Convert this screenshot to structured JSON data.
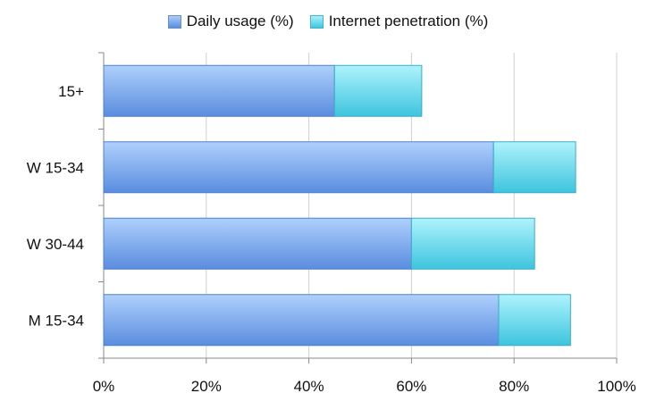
{
  "chart_data": {
    "type": "bar",
    "orientation": "horizontal",
    "stacked": true,
    "categories": [
      "15+",
      "W 15-34",
      "W 30-44",
      "M 15-34"
    ],
    "series": [
      {
        "name": "Daily usage (%)",
        "values": [
          45,
          76,
          60,
          77
        ],
        "color": "#6e9fe6"
      },
      {
        "name": "Internet penetration (%)",
        "values": [
          17,
          16,
          24,
          14
        ],
        "color": "#5fd3e6"
      }
    ],
    "xlim": [
      0,
      100
    ],
    "xticks": [
      "0%",
      "20%",
      "40%",
      "60%",
      "80%",
      "100%"
    ],
    "grid": "vertical",
    "legend_position": "top"
  }
}
